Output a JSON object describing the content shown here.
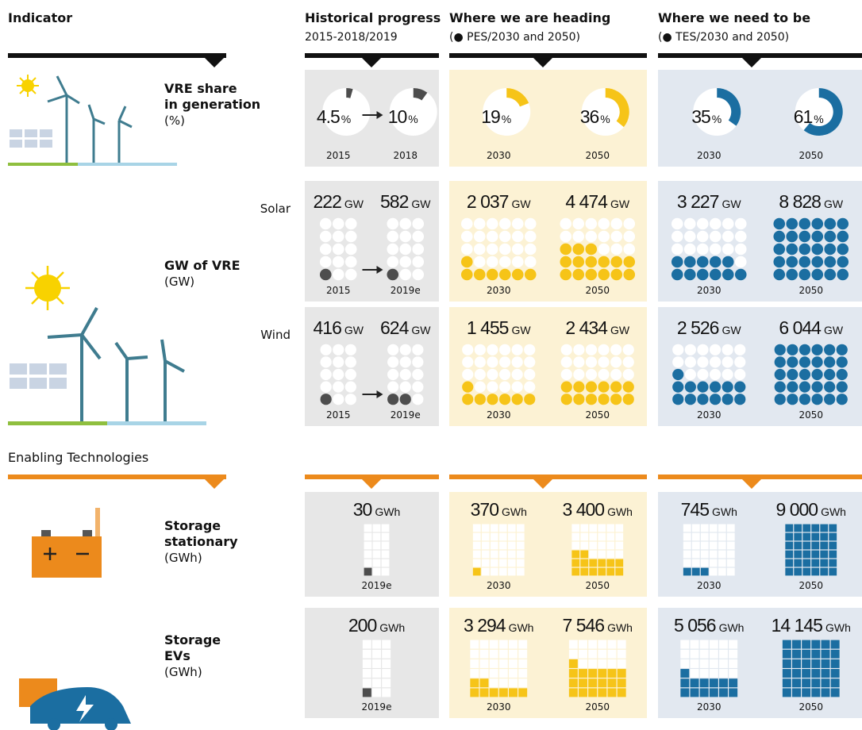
{
  "columns": [
    {
      "title": "Indicator"
    },
    {
      "title": "Historical progress",
      "subtitle": "2015-2018/2019"
    },
    {
      "title": "Where we are heading",
      "subtitle": "(● PES/2030 and 2050)"
    },
    {
      "title": "Where we need to be",
      "subtitle": "(● TES/2030 and 2050)"
    }
  ],
  "enabling_title": "Enabling Technologies",
  "rows": [
    {
      "name": [
        "VRE share",
        "in generation"
      ],
      "unit_label": "(%)",
      "unit": "%",
      "kind": "pie",
      "series": [
        {
          "cells": [
            {
              "years": [
                "2015",
                "2018"
              ],
              "values": [
                4.5,
                10
              ]
            },
            {
              "years": [
                "2030",
                "2050"
              ],
              "values": [
                19,
                36
              ]
            },
            {
              "years": [
                "2030",
                "2050"
              ],
              "values": [
                35,
                61
              ]
            }
          ]
        }
      ]
    },
    {
      "name": [
        "GW of VRE"
      ],
      "unit_label": "(GW)",
      "unit": "GW",
      "kind": "dots",
      "series": [
        {
          "name": "Solar",
          "cells": [
            {
              "years": [
                "2015",
                "2019e"
              ],
              "values": [
                222,
                582
              ]
            },
            {
              "years": [
                "2030",
                "2050"
              ],
              "values": [
                2037,
                4474
              ],
              "value_labels": [
                "2 037",
                "4 474"
              ]
            },
            {
              "years": [
                "2030",
                "2050"
              ],
              "values": [
                3227,
                8828
              ],
              "value_labels": [
                "3 227",
                "8 828"
              ]
            }
          ]
        },
        {
          "name": "Wind",
          "cells": [
            {
              "years": [
                "2015",
                "2019e"
              ],
              "values": [
                416,
                624
              ]
            },
            {
              "years": [
                "2030",
                "2050"
              ],
              "values": [
                1455,
                2434
              ],
              "value_labels": [
                "1 455",
                "2 434"
              ]
            },
            {
              "years": [
                "2030",
                "2050"
              ],
              "values": [
                2526,
                6044
              ],
              "value_labels": [
                "2 526",
                "6 044"
              ]
            }
          ]
        }
      ]
    },
    {
      "name": [
        "Storage",
        "stationary"
      ],
      "unit_label": "(GWh)",
      "unit": "GWh",
      "kind": "squares",
      "series": [
        {
          "cells": [
            {
              "years": [
                "2019e"
              ],
              "values": [
                30
              ]
            },
            {
              "years": [
                "2030",
                "2050"
              ],
              "values": [
                370,
                3400
              ],
              "value_labels": [
                "370",
                "3 400"
              ]
            },
            {
              "years": [
                "2030",
                "2050"
              ],
              "values": [
                745,
                9000
              ],
              "value_labels": [
                "745",
                "9 000"
              ]
            }
          ]
        }
      ]
    },
    {
      "name": [
        "Storage",
        "EVs"
      ],
      "unit_label": "(GWh)",
      "unit": "GWh",
      "kind": "squares",
      "series": [
        {
          "cells": [
            {
              "years": [
                "2019e"
              ],
              "values": [
                200
              ]
            },
            {
              "years": [
                "2030",
                "2050"
              ],
              "values": [
                3294,
                7546
              ],
              "value_labels": [
                "3 294",
                "7 546"
              ]
            },
            {
              "years": [
                "2030",
                "2050"
              ],
              "values": [
                5056,
                14145
              ],
              "value_labels": [
                "5 056",
                "14 145"
              ]
            }
          ]
        }
      ]
    }
  ]
}
